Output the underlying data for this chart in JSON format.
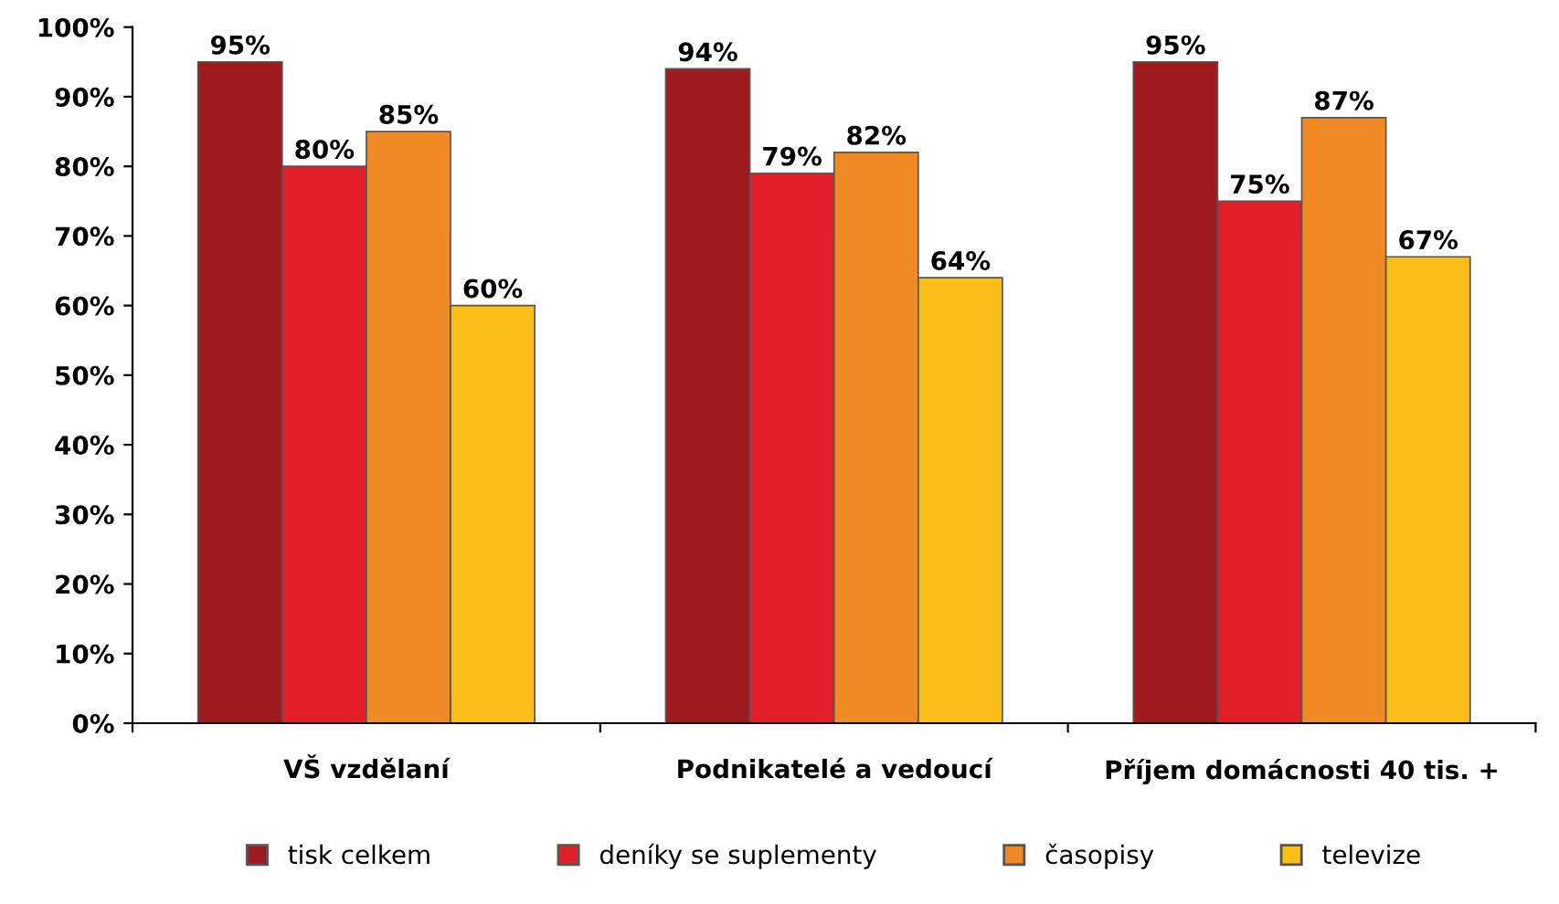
{
  "chart_data": {
    "type": "bar",
    "categories": [
      "VŠ vzdělaní",
      "Podnikatelé a vedoucí",
      "Příjem domácnosti 40 tis. +"
    ],
    "series": [
      {
        "name": "tisk celkem",
        "color": "#9b1b1f",
        "values": [
          95,
          94,
          95
        ],
        "value_labels": [
          "95%",
          "94%",
          "95%"
        ]
      },
      {
        "name": "deníky se suplementy",
        "color": "#e3202a",
        "values": [
          80,
          79,
          75
        ],
        "value_labels": [
          "80%",
          "79%",
          "75%"
        ]
      },
      {
        "name": "časopisy",
        "color": "#f08a24",
        "values": [
          85,
          82,
          87
        ],
        "value_labels": [
          "85%",
          "82%",
          "87%"
        ]
      },
      {
        "name": "televize",
        "color": "#fbbd18",
        "values": [
          60,
          64,
          67
        ],
        "value_labels": [
          "60%",
          "64%",
          "67%"
        ]
      }
    ],
    "ylim": [
      0,
      100
    ],
    "yticks": [
      {
        "value": 0,
        "label": "0%"
      },
      {
        "value": 10,
        "label": "10%"
      },
      {
        "value": 20,
        "label": "20%"
      },
      {
        "value": 30,
        "label": "30%"
      },
      {
        "value": 40,
        "label": "40%"
      },
      {
        "value": 50,
        "label": "50%"
      },
      {
        "value": 60,
        "label": "60%"
      },
      {
        "value": 70,
        "label": "70%"
      },
      {
        "value": 80,
        "label": "80%"
      },
      {
        "value": 90,
        "label": "90%"
      },
      {
        "value": 100,
        "label": "100%"
      }
    ],
    "grid": false,
    "legend": "bottom"
  }
}
